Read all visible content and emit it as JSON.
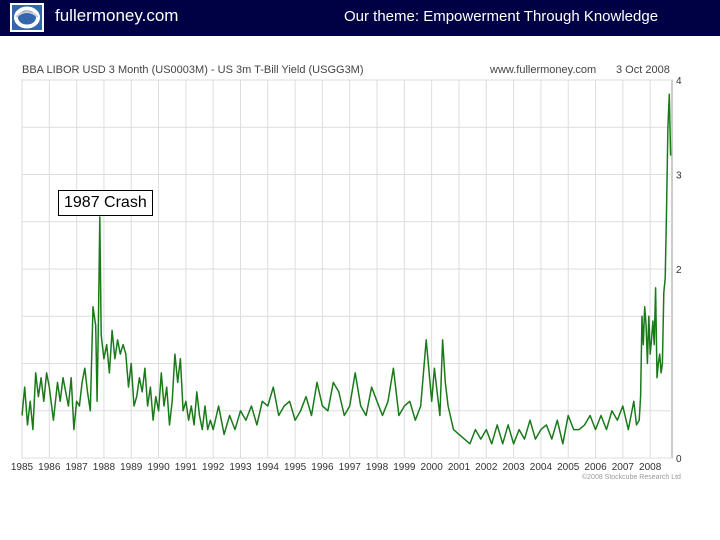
{
  "header": {
    "brand": "fullermoney.com",
    "tagline": "Our theme: Empowerment Through Knowledge"
  },
  "chart_header": {
    "title": "BBA LIBOR USD 3 Month (US0003M) - US 3m T-Bill Yield (USGG3M)",
    "source": "www.fullermoney.com",
    "date": "3 Oct 2008"
  },
  "copyright": "©2008 Stockcube Research Ltd",
  "annotation": "1987 Crash",
  "colors": {
    "header_bg": "#000044",
    "series": "#1a7a1a",
    "grid": "#dddddd"
  },
  "chart_data": {
    "type": "line",
    "title": "BBA LIBOR USD 3 Month (US0003M) - US 3m T-Bill Yield (USGG3M)",
    "xlabel": "",
    "ylabel": "",
    "ylim": [
      0,
      4
    ],
    "xlim": [
      1985,
      2008.8
    ],
    "grid": true,
    "y_ticks": [
      "4",
      "3",
      "2",
      "0"
    ],
    "x_ticks": [
      "1985",
      "1986",
      "1987",
      "1988",
      "1989",
      "1990",
      "1991",
      "1992",
      "1993",
      "1994",
      "1995",
      "1996",
      "1997",
      "1998",
      "1999",
      "2000",
      "2001",
      "2002",
      "2003",
      "2004",
      "2005",
      "2006",
      "2007",
      "2008"
    ],
    "annotations": [
      {
        "text": "1987 Crash",
        "x": 1987.8,
        "y": 2.55
      }
    ],
    "series": [
      {
        "x": [
          1985,
          1985.1,
          1985.2,
          1985.3,
          1985.4,
          1985.5,
          1985.6,
          1985.7,
          1985.8,
          1985.9,
          1986,
          1986.15,
          1986.3,
          1986.4,
          1986.5,
          1986.6,
          1986.7,
          1986.8,
          1986.9,
          1987,
          1987.1,
          1987.2,
          1987.3,
          1987.4,
          1987.5,
          1987.6,
          1987.7,
          1987.75,
          1987.8,
          1987.85,
          1987.9,
          1988,
          1988.1,
          1988.2,
          1988.3,
          1988.4,
          1988.5,
          1988.6,
          1988.7,
          1988.8,
          1988.9,
          1989,
          1989.1,
          1989.2,
          1989.3,
          1989.4,
          1989.5,
          1989.6,
          1989.7,
          1989.8,
          1989.9,
          1990,
          1990.1,
          1990.2,
          1990.3,
          1990.4,
          1990.5,
          1990.6,
          1990.7,
          1990.8,
          1990.9,
          1991,
          1991.1,
          1991.2,
          1991.3,
          1991.4,
          1991.5,
          1991.6,
          1991.7,
          1991.8,
          1991.9,
          1992,
          1992.2,
          1992.4,
          1992.6,
          1992.8,
          1993,
          1993.2,
          1993.4,
          1993.6,
          1993.8,
          1994,
          1994.2,
          1994.4,
          1994.6,
          1994.8,
          1995,
          1995.2,
          1995.4,
          1995.6,
          1995.8,
          1996,
          1996.2,
          1996.4,
          1996.6,
          1996.8,
          1997,
          1997.2,
          1997.4,
          1997.6,
          1997.8,
          1998,
          1998.2,
          1998.4,
          1998.6,
          1998.8,
          1999,
          1999.2,
          1999.4,
          1999.6,
          1999.8,
          2000,
          2000.1,
          2000.2,
          2000.3,
          2000.4,
          2000.5,
          2000.6,
          2000.8,
          2001,
          2001.2,
          2001.4,
          2001.6,
          2001.8,
          2002,
          2002.2,
          2002.4,
          2002.6,
          2002.8,
          2003,
          2003.2,
          2003.4,
          2003.6,
          2003.8,
          2004,
          2004.2,
          2004.4,
          2004.6,
          2004.8,
          2005,
          2005.2,
          2005.4,
          2005.6,
          2005.8,
          2006,
          2006.2,
          2006.4,
          2006.6,
          2006.8,
          2007,
          2007.2,
          2007.4,
          2007.5,
          2007.6,
          2007.65,
          2007.7,
          2007.75,
          2007.8,
          2007.85,
          2007.9,
          2007.95,
          2008,
          2008.05,
          2008.1,
          2008.15,
          2008.2,
          2008.25,
          2008.3,
          2008.35,
          2008.4,
          2008.45,
          2008.5,
          2008.55,
          2008.6,
          2008.65,
          2008.7,
          2008.75
        ],
        "values": [
          0.45,
          0.75,
          0.35,
          0.6,
          0.3,
          0.9,
          0.65,
          0.85,
          0.6,
          0.9,
          0.75,
          0.4,
          0.8,
          0.6,
          0.85,
          0.7,
          0.55,
          0.85,
          0.3,
          0.6,
          0.55,
          0.8,
          0.95,
          0.7,
          0.5,
          1.6,
          1.4,
          0.6,
          1.5,
          2.55,
          1.3,
          1.05,
          1.2,
          0.9,
          1.35,
          1.05,
          1.25,
          1.1,
          1.2,
          1.1,
          0.75,
          1.0,
          0.55,
          0.65,
          0.85,
          0.7,
          0.95,
          0.55,
          0.75,
          0.4,
          0.65,
          0.5,
          0.9,
          0.55,
          0.75,
          0.35,
          0.6,
          1.1,
          0.8,
          1.05,
          0.5,
          0.6,
          0.4,
          0.55,
          0.35,
          0.7,
          0.45,
          0.3,
          0.55,
          0.3,
          0.4,
          0.3,
          0.55,
          0.25,
          0.45,
          0.3,
          0.5,
          0.4,
          0.55,
          0.35,
          0.6,
          0.55,
          0.75,
          0.45,
          0.55,
          0.6,
          0.4,
          0.5,
          0.65,
          0.45,
          0.8,
          0.55,
          0.5,
          0.8,
          0.7,
          0.45,
          0.55,
          0.9,
          0.55,
          0.45,
          0.75,
          0.6,
          0.45,
          0.6,
          0.95,
          0.45,
          0.55,
          0.6,
          0.4,
          0.55,
          1.25,
          0.6,
          0.95,
          0.7,
          0.45,
          1.25,
          0.8,
          0.55,
          0.3,
          0.25,
          0.2,
          0.15,
          0.3,
          0.2,
          0.3,
          0.15,
          0.35,
          0.15,
          0.35,
          0.15,
          0.3,
          0.2,
          0.4,
          0.2,
          0.3,
          0.35,
          0.2,
          0.4,
          0.15,
          0.45,
          0.3,
          0.3,
          0.35,
          0.45,
          0.3,
          0.45,
          0.3,
          0.5,
          0.4,
          0.55,
          0.3,
          0.6,
          0.35,
          0.4,
          0.65,
          1.5,
          1.2,
          1.6,
          1.4,
          1.0,
          1.5,
          1.1,
          1.25,
          1.45,
          1.2,
          1.8,
          0.85,
          1.0,
          1.1,
          0.9,
          1.0,
          1.75,
          1.9,
          2.6,
          3.5,
          3.85,
          3.2
        ]
      }
    ]
  }
}
